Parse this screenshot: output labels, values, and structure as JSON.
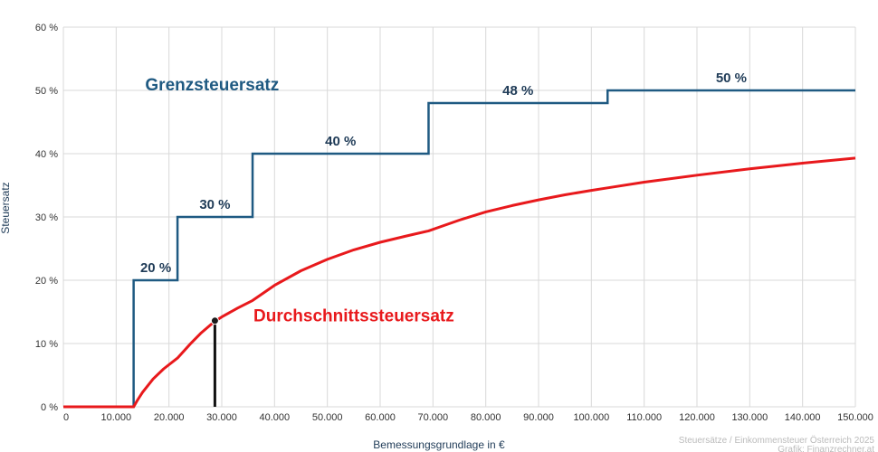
{
  "chart_data": {
    "type": "line",
    "xlabel": "Bemessungsgrundlage in €",
    "ylabel": "Steuersatz",
    "xlim": [
      0,
      150000
    ],
    "ylim": [
      0,
      60
    ],
    "grid": true,
    "x_ticks": [
      {
        "value": 0,
        "label": "0"
      },
      {
        "value": 10000,
        "label": "10.000"
      },
      {
        "value": 20000,
        "label": "20.000"
      },
      {
        "value": 30000,
        "label": "30.000"
      },
      {
        "value": 40000,
        "label": "40.000"
      },
      {
        "value": 50000,
        "label": "50.000"
      },
      {
        "value": 60000,
        "label": "60.000"
      },
      {
        "value": 70000,
        "label": "70.000"
      },
      {
        "value": 80000,
        "label": "80.000"
      },
      {
        "value": 90000,
        "label": "90.000"
      },
      {
        "value": 100000,
        "label": "100.000"
      },
      {
        "value": 110000,
        "label": "110.000"
      },
      {
        "value": 120000,
        "label": "120.000"
      },
      {
        "value": 130000,
        "label": "130.000"
      },
      {
        "value": 140000,
        "label": "140.000"
      },
      {
        "value": 150000,
        "label": "150.000"
      }
    ],
    "y_ticks": [
      {
        "value": 0,
        "label": "0 %"
      },
      {
        "value": 10,
        "label": "10 %"
      },
      {
        "value": 20,
        "label": "20 %"
      },
      {
        "value": 30,
        "label": "30 %"
      },
      {
        "value": 40,
        "label": "40 %"
      },
      {
        "value": 50,
        "label": "50 %"
      },
      {
        "value": 60,
        "label": "60 %"
      }
    ],
    "series": [
      {
        "name": "Grenzsteuersatz",
        "color": "#1f5a82",
        "step": true,
        "points": [
          [
            0,
            0
          ],
          [
            13308,
            0
          ],
          [
            13308,
            20
          ],
          [
            21617,
            20
          ],
          [
            21617,
            30
          ],
          [
            35836,
            30
          ],
          [
            35836,
            40
          ],
          [
            69166,
            40
          ],
          [
            69166,
            48
          ],
          [
            103072,
            48
          ],
          [
            103072,
            50
          ],
          [
            150000,
            50
          ]
        ]
      },
      {
        "name": "Durchschnittssteuersatz",
        "color": "#e8191c",
        "step": false,
        "points": [
          [
            0,
            0
          ],
          [
            13308,
            0
          ],
          [
            14000,
            1.0
          ],
          [
            15000,
            2.3
          ],
          [
            17000,
            4.4
          ],
          [
            19000,
            6.0
          ],
          [
            21617,
            7.7
          ],
          [
            24000,
            9.9
          ],
          [
            26000,
            11.6
          ],
          [
            28500,
            13.4
          ],
          [
            30000,
            14.2
          ],
          [
            33000,
            15.6
          ],
          [
            35836,
            16.8
          ],
          [
            40000,
            19.2
          ],
          [
            45000,
            21.5
          ],
          [
            50000,
            23.3
          ],
          [
            55000,
            24.8
          ],
          [
            60000,
            26.0
          ],
          [
            65000,
            27.0
          ],
          [
            69166,
            27.8
          ],
          [
            75000,
            29.5
          ],
          [
            80000,
            30.8
          ],
          [
            85000,
            31.8
          ],
          [
            90000,
            32.7
          ],
          [
            95000,
            33.5
          ],
          [
            100000,
            34.2
          ],
          [
            103072,
            34.6
          ],
          [
            110000,
            35.5
          ],
          [
            120000,
            36.6
          ],
          [
            130000,
            37.6
          ],
          [
            140000,
            38.5
          ],
          [
            150000,
            39.3
          ]
        ]
      }
    ],
    "step_labels": [
      {
        "x": 17500,
        "y": 20,
        "text": "20 %"
      },
      {
        "x": 28700,
        "y": 30,
        "text": "30 %"
      },
      {
        "x": 52500,
        "y": 40,
        "text": "40 %"
      },
      {
        "x": 86100,
        "y": 48,
        "text": "48 %"
      },
      {
        "x": 126500,
        "y": 50,
        "text": "50 %"
      }
    ],
    "series_labels": [
      {
        "x": 15500,
        "y": 50,
        "text": "Grenzsteuersatz",
        "color": "#1f5a82"
      },
      {
        "x": 36000,
        "y": 13.5,
        "text": "Durchschnittssteuersatz",
        "color": "#e8191c"
      }
    ],
    "marker": {
      "x": 28700,
      "y": 13.6
    },
    "credit": [
      "Steuersätze / Einkommensteuer Österreich 2025",
      "Grafik: Finanzrechner.at"
    ]
  }
}
